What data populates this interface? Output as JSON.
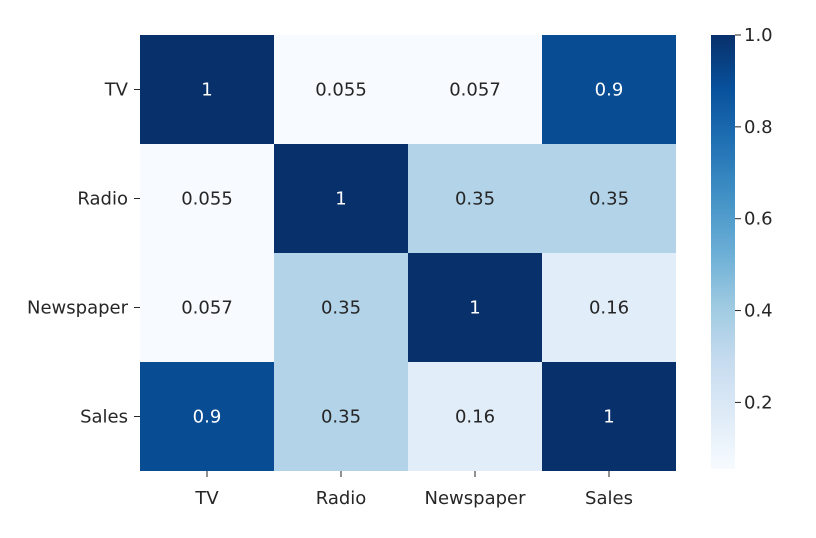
{
  "chart_data": {
    "type": "heatmap",
    "x_labels": [
      "TV",
      "Radio",
      "Newspaper",
      "Sales"
    ],
    "y_labels": [
      "TV",
      "Radio",
      "Newspaper",
      "Sales"
    ],
    "matrix": [
      [
        1,
        0.055,
        0.057,
        0.9
      ],
      [
        0.055,
        1,
        0.35,
        0.35
      ],
      [
        0.057,
        0.35,
        1,
        0.16
      ],
      [
        0.9,
        0.35,
        0.16,
        1
      ]
    ],
    "annotations": [
      [
        "1",
        "0.055",
        "0.057",
        "0.9"
      ],
      [
        "0.055",
        "1",
        "0.35",
        "0.35"
      ],
      [
        "0.057",
        "0.35",
        "1",
        "0.16"
      ],
      [
        "0.9",
        "0.35",
        "0.16",
        "1"
      ]
    ],
    "colormap": "Blues",
    "colorbar": {
      "range": [
        0.055,
        1.0
      ],
      "ticks": [
        0.2,
        0.4,
        0.6,
        0.8,
        1.0
      ],
      "tick_labels": [
        "0.2",
        "0.4",
        "0.6",
        "0.8",
        "1.0"
      ]
    },
    "colors": {
      "low": "#f7fbff",
      "high": "#08306b",
      "text_dark": "#262626",
      "text_light": "#ffffff"
    }
  }
}
